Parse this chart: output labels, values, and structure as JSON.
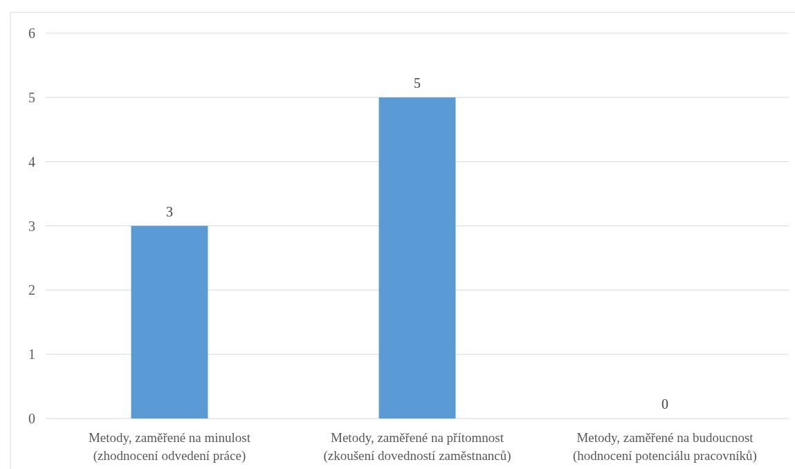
{
  "chart_data": {
    "type": "bar",
    "categories": [
      "Metody, zaměřené na minulost\n(zhodnocení odvedení práce)",
      "Metody, zaměřené na přítomnost\n(zkoušení dovedností zaměstnanců)",
      "Metody, zaměřené na budoucnost\n(hodnocení potenciálu pracovníků)"
    ],
    "values": [
      3,
      5,
      0
    ],
    "color": "#5b9bd5",
    "ylim": [
      0,
      6
    ],
    "yticks": [
      0,
      1,
      2,
      3,
      4,
      5,
      6
    ],
    "grid": "y",
    "data_labels": true
  }
}
